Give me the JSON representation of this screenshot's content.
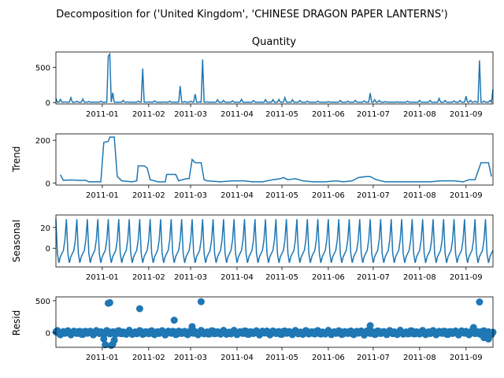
{
  "figure": {
    "suptitle": "Decomposition for ('United Kingdom', 'CHINESE DRAGON PAPER LANTERNS')",
    "colors": {
      "series": "#1f77b4",
      "axis": "#000000",
      "background": "#ffffff"
    }
  },
  "chart_data": [
    {
      "type": "line",
      "title": "Quantity",
      "xlabel": "",
      "ylabel": "",
      "x_range_days": [
        0,
        292
      ],
      "ylim": [
        -20,
        720
      ],
      "yticks": [
        0,
        500
      ],
      "xtick_labels": [
        "2011-01",
        "2011-02",
        "2011-03",
        "2011-04",
        "2011-05",
        "2011-06",
        "2011-07",
        "2011-08",
        "2011-09"
      ],
      "xtick_days": [
        31,
        62,
        90,
        121,
        151,
        182,
        212,
        243,
        274
      ],
      "baseline": 5,
      "points": [
        [
          0,
          60
        ],
        [
          3,
          45
        ],
        [
          6,
          10
        ],
        [
          10,
          70
        ],
        [
          14,
          20
        ],
        [
          18,
          50
        ],
        [
          22,
          15
        ],
        [
          30,
          20
        ],
        [
          35,
          660
        ],
        [
          36,
          690
        ],
        [
          38,
          140
        ],
        [
          40,
          5
        ],
        [
          45,
          30
        ],
        [
          48,
          10
        ],
        [
          55,
          20
        ],
        [
          58,
          485
        ],
        [
          62,
          10
        ],
        [
          66,
          25
        ],
        [
          72,
          10
        ],
        [
          76,
          20
        ],
        [
          80,
          5
        ],
        [
          83,
          235
        ],
        [
          86,
          15
        ],
        [
          90,
          20
        ],
        [
          93,
          120
        ],
        [
          96,
          10
        ],
        [
          98,
          615
        ],
        [
          101,
          10
        ],
        [
          108,
          40
        ],
        [
          112,
          30
        ],
        [
          118,
          25
        ],
        [
          124,
          45
        ],
        [
          132,
          30
        ],
        [
          140,
          40
        ],
        [
          145,
          40
        ],
        [
          149,
          45
        ],
        [
          153,
          70
        ],
        [
          158,
          40
        ],
        [
          163,
          30
        ],
        [
          168,
          20
        ],
        [
          175,
          20
        ],
        [
          182,
          15
        ],
        [
          190,
          30
        ],
        [
          195,
          20
        ],
        [
          200,
          30
        ],
        [
          206,
          25
        ],
        [
          210,
          135
        ],
        [
          213,
          40
        ],
        [
          216,
          30
        ],
        [
          220,
          15
        ],
        [
          228,
          10
        ],
        [
          235,
          20
        ],
        [
          243,
          30
        ],
        [
          250,
          30
        ],
        [
          256,
          60
        ],
        [
          260,
          30
        ],
        [
          266,
          25
        ],
        [
          270,
          30
        ],
        [
          274,
          90
        ],
        [
          277,
          30
        ],
        [
          280,
          20
        ],
        [
          283,
          600
        ],
        [
          286,
          20
        ],
        [
          290,
          30
        ],
        [
          292,
          190
        ]
      ]
    },
    {
      "type": "line",
      "title": "",
      "xlabel": "",
      "ylabel": "Trend",
      "x_range_days": [
        0,
        292
      ],
      "ylim": [
        -10,
        230
      ],
      "yticks": [
        0,
        200
      ],
      "xtick_labels": [
        "2011-01",
        "2011-02",
        "2011-03",
        "2011-04",
        "2011-05",
        "2011-06",
        "2011-07",
        "2011-08",
        "2011-09"
      ],
      "xtick_days": [
        31,
        62,
        90,
        121,
        151,
        182,
        212,
        243,
        274
      ],
      "points": [
        [
          3,
          38
        ],
        [
          5,
          12
        ],
        [
          10,
          14
        ],
        [
          15,
          12
        ],
        [
          20,
          12
        ],
        [
          22,
          5
        ],
        [
          30,
          5
        ],
        [
          32,
          190
        ],
        [
          35,
          195
        ],
        [
          36,
          215
        ],
        [
          39,
          215
        ],
        [
          41,
          30
        ],
        [
          44,
          10
        ],
        [
          51,
          5
        ],
        [
          54,
          10
        ],
        [
          55,
          80
        ],
        [
          59,
          80
        ],
        [
          61,
          70
        ],
        [
          63,
          15
        ],
        [
          68,
          5
        ],
        [
          73,
          5
        ],
        [
          74,
          40
        ],
        [
          80,
          40
        ],
        [
          82,
          10
        ],
        [
          87,
          20
        ],
        [
          89,
          20
        ],
        [
          91,
          110
        ],
        [
          93,
          95
        ],
        [
          97,
          95
        ],
        [
          99,
          15
        ],
        [
          101,
          10
        ],
        [
          110,
          5
        ],
        [
          118,
          10
        ],
        [
          126,
          10
        ],
        [
          131,
          5
        ],
        [
          138,
          5
        ],
        [
          145,
          15
        ],
        [
          150,
          20
        ],
        [
          152,
          25
        ],
        [
          155,
          15
        ],
        [
          160,
          20
        ],
        [
          165,
          10
        ],
        [
          172,
          5
        ],
        [
          180,
          5
        ],
        [
          187,
          10
        ],
        [
          192,
          5
        ],
        [
          198,
          10
        ],
        [
          202,
          25
        ],
        [
          207,
          30
        ],
        [
          210,
          30
        ],
        [
          214,
          15
        ],
        [
          220,
          5
        ],
        [
          230,
          5
        ],
        [
          240,
          5
        ],
        [
          250,
          5
        ],
        [
          257,
          10
        ],
        [
          260,
          10
        ],
        [
          266,
          10
        ],
        [
          272,
          5
        ],
        [
          276,
          15
        ],
        [
          280,
          15
        ],
        [
          284,
          95
        ],
        [
          289,
          95
        ],
        [
          291,
          30
        ]
      ]
    },
    {
      "type": "line",
      "title": "",
      "xlabel": "",
      "ylabel": "Seasonal",
      "x_range_days": [
        0,
        292
      ],
      "ylim": [
        -18,
        32
      ],
      "yticks": [
        0,
        20
      ],
      "xtick_labels": [
        "2011-01",
        "2011-02",
        "2011-03",
        "2011-04",
        "2011-05",
        "2011-06",
        "2011-07",
        "2011-08",
        "2011-09"
      ],
      "xtick_days": [
        31,
        62,
        90,
        121,
        151,
        182,
        212,
        243,
        274
      ],
      "period_days": 7,
      "pattern": [
        28,
        -5,
        -14,
        -8,
        -5,
        -2,
        8
      ]
    },
    {
      "type": "scatter",
      "title": "",
      "xlabel": "",
      "ylabel": "Resid",
      "x_range_days": [
        0,
        292
      ],
      "ylim": [
        -230,
        560
      ],
      "yticks": [
        0,
        500
      ],
      "xtick_labels": [
        "2011-01",
        "2011-02",
        "2011-03",
        "2011-04",
        "2011-05",
        "2011-06",
        "2011-07",
        "2011-08",
        "2011-09"
      ],
      "xtick_days": [
        31,
        62,
        90,
        121,
        151,
        182,
        212,
        243,
        274
      ],
      "outliers": [
        [
          32,
          -100
        ],
        [
          33,
          -190
        ],
        [
          35,
          460
        ],
        [
          36,
          470
        ],
        [
          37,
          -200
        ],
        [
          38,
          -180
        ],
        [
          39,
          -120
        ],
        [
          56,
          375
        ],
        [
          79,
          195
        ],
        [
          91,
          95
        ],
        [
          97,
          485
        ],
        [
          210,
          110
        ],
        [
          283,
          480
        ],
        [
          286,
          -80
        ],
        [
          289,
          -100
        ],
        [
          279,
          80
        ]
      ]
    }
  ]
}
